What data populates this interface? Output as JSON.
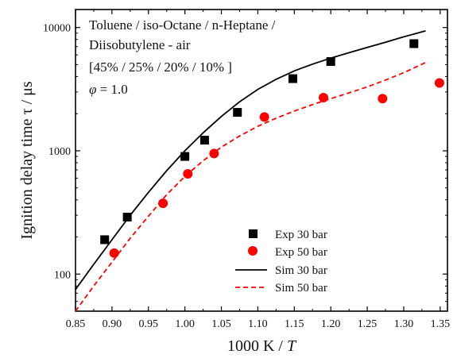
{
  "chart_data": {
    "type": "scatter",
    "xlabel_prefix": "1000 K / ",
    "xlabel_var": "T",
    "ylabel": "Ignition delay time  τ / μs",
    "xlim": [
      0.85,
      1.36
    ],
    "ylim": [
      50,
      14000
    ],
    "y_scale": "log",
    "x_ticks": [
      "0.85",
      "0.90",
      "0.95",
      "1.00",
      "1.05",
      "1.10",
      "1.15",
      "1.20",
      "1.25",
      "1.30",
      "1.35"
    ],
    "y_ticks": [
      "100",
      "1000",
      "10000"
    ],
    "annotation": {
      "line1": "Toluene / iso-Octane / n-Heptane /",
      "line2": "Diisobutylene - air",
      "line3": "[45% / 25% / 20% / 10% ]",
      "phi_symbol": "φ",
      "phi_value": " = 1.0"
    },
    "legend_position": "bottom-right",
    "series": [
      {
        "name": "Exp 30 bar",
        "kind": "markers",
        "marker": "square",
        "color": "#000000",
        "x": [
          0.89,
          0.921,
          1.0,
          1.027,
          1.072,
          1.148,
          1.2,
          1.314
        ],
        "y": [
          190,
          290,
          900,
          1220,
          2050,
          3850,
          5300,
          7400
        ]
      },
      {
        "name": "Exp 50 bar",
        "kind": "markers",
        "marker": "circle",
        "color": "#ff0000",
        "x": [
          0.903,
          0.97,
          1.004,
          1.04,
          1.109,
          1.19,
          1.271,
          1.349
        ],
        "y": [
          148,
          375,
          650,
          950,
          1880,
          2700,
          2650,
          3550
        ]
      },
      {
        "name": "Sim 30 bar",
        "kind": "line",
        "dash": "solid",
        "color": "#000000",
        "x": [
          0.85,
          0.875,
          0.9,
          0.925,
          0.95,
          0.975,
          1.0,
          1.025,
          1.05,
          1.075,
          1.1,
          1.125,
          1.15,
          1.175,
          1.2,
          1.225,
          1.25,
          1.275,
          1.3,
          1.33
        ],
        "y": [
          75,
          120,
          190,
          300,
          460,
          690,
          1000,
          1400,
          1900,
          2500,
          3150,
          3800,
          4450,
          5050,
          5650,
          6250,
          6900,
          7600,
          8400,
          9400
        ]
      },
      {
        "name": "Sim 50 bar",
        "kind": "line",
        "dash": "dashed",
        "color": "#ff0000",
        "x": [
          0.85,
          0.875,
          0.9,
          0.925,
          0.95,
          0.975,
          1.0,
          1.025,
          1.05,
          1.075,
          1.1,
          1.125,
          1.15,
          1.175,
          1.2,
          1.225,
          1.25,
          1.275,
          1.3,
          1.33
        ],
        "y": [
          50,
          80,
          125,
          195,
          295,
          440,
          620,
          830,
          1070,
          1320,
          1580,
          1840,
          2100,
          2370,
          2650,
          2950,
          3300,
          3750,
          4300,
          5200
        ]
      }
    ]
  }
}
